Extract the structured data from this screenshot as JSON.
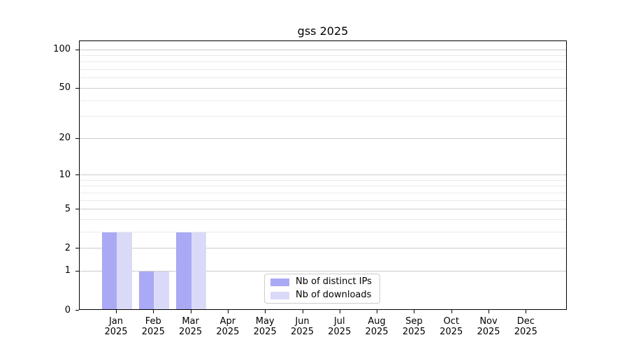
{
  "chart_data": {
    "type": "bar",
    "title": "gss 2025",
    "categories": [
      "Jan",
      "Feb",
      "Mar",
      "Apr",
      "May",
      "Jun",
      "Jul",
      "Aug",
      "Sep",
      "Oct",
      "Nov",
      "Dec"
    ],
    "year_label": "2025",
    "series": [
      {
        "name": "Nb of distinct IPs",
        "color": "#a9a9f5",
        "values": [
          3,
          1,
          3,
          0,
          0,
          0,
          0,
          0,
          0,
          0,
          0,
          0
        ]
      },
      {
        "name": "Nb of downloads",
        "color": "#dadaf8",
        "values": [
          3,
          1,
          3,
          0,
          0,
          0,
          0,
          0,
          0,
          0,
          0,
          0
        ]
      }
    ],
    "yscale": "log10(1+x)",
    "ylim": [
      0,
      117
    ],
    "y_major_ticks": [
      0,
      1,
      2,
      5,
      10,
      20,
      50,
      100
    ],
    "y_minor_gridlines": [
      3,
      4,
      6,
      7,
      8,
      9,
      30,
      40,
      60,
      70,
      80,
      90
    ],
    "grid": true,
    "legend_position": "lower center",
    "colors": {
      "grid_major": "#cccccc",
      "grid_minor": "#eaeaea",
      "spine": "#000000",
      "text": "#000000",
      "background": "#ffffff"
    }
  }
}
